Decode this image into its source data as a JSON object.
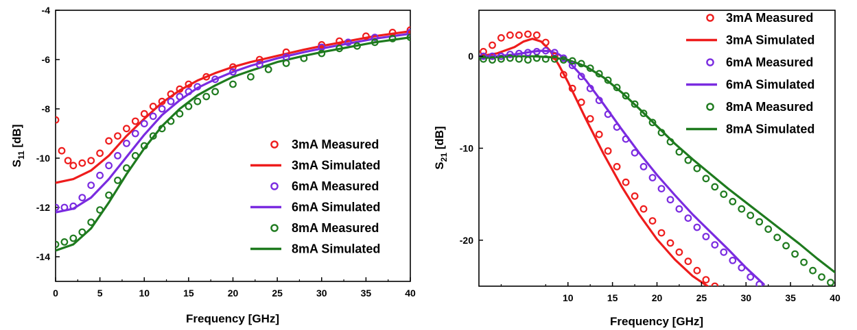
{
  "chart_data": [
    {
      "type": "line",
      "xlabel": "Frequency [GHz]",
      "ylabel_main": "S",
      "ylabel_sub": "11",
      "ylabel_unit": " [dB]",
      "xlim": [
        0,
        40
      ],
      "ylim": [
        -15,
        -4
      ],
      "xticks": [
        0,
        5,
        10,
        15,
        20,
        25,
        30,
        35,
        40
      ],
      "yticks": [
        -14,
        -12,
        -10,
        -8,
        -6,
        -4
      ],
      "grid": false,
      "legend_position": "center-right",
      "colors": {
        "3mA": "#ee1c1c",
        "6mA": "#7a2be0",
        "8mA": "#1e7a1e"
      },
      "series": [
        {
          "name": "3mA Measured",
          "style": "marker",
          "color": "#ee1c1c",
          "x": [
            0,
            0.7,
            1.4,
            2,
            3,
            4,
            5,
            6,
            7,
            8,
            9,
            10,
            11,
            12,
            13,
            14,
            15,
            17,
            20,
            23,
            26,
            30,
            32,
            35,
            38,
            40
          ],
          "y": [
            -8.45,
            -9.7,
            -10.1,
            -10.3,
            -10.2,
            -10.1,
            -9.8,
            -9.3,
            -9.1,
            -8.8,
            -8.5,
            -8.2,
            -7.9,
            -7.7,
            -7.4,
            -7.2,
            -7.0,
            -6.7,
            -6.3,
            -6.0,
            -5.7,
            -5.4,
            -5.25,
            -5.05,
            -4.9,
            -4.8
          ]
        },
        {
          "name": "3mA Simulated",
          "style": "line",
          "color": "#ee1c1c",
          "x": [
            0,
            2,
            4,
            6,
            8,
            10,
            12,
            14,
            16,
            18,
            20,
            22,
            25,
            28,
            30,
            33,
            36,
            40
          ],
          "y": [
            -11.0,
            -10.85,
            -10.5,
            -9.9,
            -9.1,
            -8.4,
            -7.75,
            -7.25,
            -6.85,
            -6.55,
            -6.3,
            -6.1,
            -5.85,
            -5.6,
            -5.45,
            -5.25,
            -5.05,
            -4.85
          ]
        },
        {
          "name": "6mA Measured",
          "style": "marker",
          "color": "#7a2be0",
          "x": [
            0,
            1,
            2,
            3,
            4,
            5,
            6,
            7,
            8,
            9,
            10,
            11,
            12,
            13,
            14,
            15,
            16,
            18,
            20,
            23,
            26,
            30,
            33,
            36,
            40
          ],
          "y": [
            -12.0,
            -12.0,
            -11.95,
            -11.6,
            -11.1,
            -10.7,
            -10.3,
            -9.9,
            -9.4,
            -9.0,
            -8.6,
            -8.3,
            -8.0,
            -7.7,
            -7.5,
            -7.3,
            -7.1,
            -6.8,
            -6.5,
            -6.2,
            -5.9,
            -5.5,
            -5.3,
            -5.1,
            -4.9
          ]
        },
        {
          "name": "6mA Simulated",
          "style": "line",
          "color": "#7a2be0",
          "x": [
            0,
            2,
            4,
            6,
            8,
            10,
            12,
            14,
            16,
            18,
            20,
            22,
            25,
            28,
            30,
            33,
            36,
            40
          ],
          "y": [
            -12.2,
            -12.05,
            -11.6,
            -10.85,
            -9.95,
            -9.05,
            -8.25,
            -7.65,
            -7.15,
            -6.8,
            -6.5,
            -6.25,
            -5.95,
            -5.7,
            -5.55,
            -5.35,
            -5.15,
            -4.95
          ]
        },
        {
          "name": "8mA Measured",
          "style": "marker",
          "color": "#1e7a1e",
          "x": [
            0,
            1,
            2,
            3,
            4,
            5,
            6,
            7,
            8,
            9,
            10,
            11,
            12,
            13,
            14,
            15,
            16,
            17,
            18,
            20,
            22,
            24,
            26,
            28,
            30,
            32,
            34,
            36,
            38,
            40
          ],
          "y": [
            -13.5,
            -13.4,
            -13.25,
            -13.0,
            -12.6,
            -12.1,
            -11.5,
            -10.9,
            -10.4,
            -9.9,
            -9.5,
            -9.1,
            -8.8,
            -8.5,
            -8.2,
            -7.9,
            -7.7,
            -7.5,
            -7.3,
            -7.0,
            -6.7,
            -6.4,
            -6.15,
            -5.95,
            -5.75,
            -5.55,
            -5.45,
            -5.3,
            -5.15,
            -5.1
          ]
        },
        {
          "name": "8mA Simulated",
          "style": "line",
          "color": "#1e7a1e",
          "x": [
            0,
            2,
            4,
            6,
            8,
            10,
            12,
            14,
            16,
            18,
            20,
            22,
            25,
            28,
            30,
            33,
            36,
            40
          ],
          "y": [
            -13.75,
            -13.5,
            -12.85,
            -11.8,
            -10.65,
            -9.6,
            -8.7,
            -8.0,
            -7.45,
            -7.05,
            -6.7,
            -6.45,
            -6.1,
            -5.85,
            -5.7,
            -5.5,
            -5.3,
            -5.1
          ]
        }
      ]
    },
    {
      "type": "line",
      "xlabel": "Frequency [GHz]",
      "ylabel_main": "S",
      "ylabel_sub": "21",
      "ylabel_unit": " [dB]",
      "xlim": [
        0,
        40
      ],
      "ylim": [
        -25,
        5
      ],
      "xticks": [
        10,
        15,
        20,
        25,
        30,
        35,
        40
      ],
      "yticks": [
        -20,
        -10,
        0
      ],
      "grid": false,
      "legend_position": "top-right",
      "colors": {
        "3mA": "#ee1c1c",
        "6mA": "#7a2be0",
        "8mA": "#1e7a1e"
      },
      "series": [
        {
          "name": "3mA Measured",
          "style": "marker",
          "color": "#ee1c1c",
          "x": [
            0.5,
            1.5,
            2.5,
            3.5,
            4.5,
            5.5,
            6.5,
            7.5,
            8.5,
            9.5,
            10.5,
            11.5,
            12.5,
            13.5,
            14.5,
            15.5,
            16.5,
            17.5,
            18.5,
            19.5,
            20.5,
            21.5,
            22.5,
            23.5,
            24.5,
            25.5,
            26.5
          ],
          "y": [
            0.5,
            1.2,
            2.0,
            2.3,
            2.3,
            2.4,
            2.3,
            1.5,
            0.0,
            -2.0,
            -3.5,
            -5.0,
            -6.8,
            -8.5,
            -10.3,
            -12.0,
            -13.7,
            -15.2,
            -16.6,
            -17.9,
            -19.2,
            -20.3,
            -21.3,
            -22.3,
            -23.3,
            -24.3,
            -25.0
          ]
        },
        {
          "name": "3mA Simulated",
          "style": "line",
          "color": "#ee1c1c",
          "x": [
            0,
            2,
            4,
            5,
            6,
            7,
            8,
            9,
            10,
            11,
            12,
            14,
            16,
            18,
            20,
            22,
            24,
            26,
            27
          ],
          "y": [
            0,
            0.3,
            1.0,
            1.6,
            1.9,
            1.6,
            0.6,
            -1.0,
            -2.8,
            -4.8,
            -6.8,
            -10.6,
            -14.1,
            -17.2,
            -19.9,
            -22.1,
            -23.9,
            -25.2,
            -25.6
          ]
        },
        {
          "name": "6mA Measured",
          "style": "marker",
          "color": "#7a2be0",
          "x": [
            0.5,
            1.5,
            2.5,
            3.5,
            4.5,
            5.5,
            6.5,
            7.5,
            8.5,
            9.5,
            10.5,
            11.5,
            12.5,
            13.5,
            14.5,
            15.5,
            16.5,
            17.5,
            18.5,
            19.5,
            20.5,
            21.5,
            22.5,
            23.5,
            24.5,
            25.5,
            26.5,
            27.5,
            28.5,
            29.5,
            30.5,
            31.5
          ],
          "y": [
            0,
            0,
            0,
            0.2,
            0.3,
            0.4,
            0.5,
            0.6,
            0.4,
            -0.2,
            -1.0,
            -2.2,
            -3.5,
            -4.8,
            -6.3,
            -7.7,
            -9.0,
            -10.5,
            -12.0,
            -13.2,
            -14.4,
            -15.6,
            -16.6,
            -17.6,
            -18.6,
            -19.6,
            -20.5,
            -21.3,
            -22.2,
            -23.0,
            -24.0,
            -24.8
          ]
        },
        {
          "name": "6mA Simulated",
          "style": "line",
          "color": "#7a2be0",
          "x": [
            0,
            2,
            4,
            6,
            7,
            8,
            9,
            10,
            12,
            14,
            16,
            18,
            20,
            22,
            24,
            26,
            28,
            30,
            32
          ],
          "y": [
            0,
            0,
            0.2,
            0.5,
            0.6,
            0.55,
            0.2,
            -0.5,
            -2.6,
            -5.2,
            -7.9,
            -10.5,
            -12.9,
            -15.1,
            -17.2,
            -19.1,
            -21.0,
            -23.0,
            -24.8
          ]
        },
        {
          "name": "8mA Measured",
          "style": "marker",
          "color": "#1e7a1e",
          "x": [
            0.5,
            1.5,
            2.5,
            3.5,
            4.5,
            5.5,
            6.5,
            7.5,
            8.5,
            9.5,
            10.5,
            11.5,
            12.5,
            13.5,
            14.5,
            15.5,
            16.5,
            17.5,
            18.5,
            19.5,
            20.5,
            21.5,
            22.5,
            23.5,
            24.5,
            25.5,
            26.5,
            27.5,
            28.5,
            29.5,
            30.5,
            31.5,
            32.5,
            33.5,
            34.5,
            35.5,
            36.5,
            37.5,
            38.5,
            39.5
          ],
          "y": [
            -0.3,
            -0.4,
            -0.3,
            -0.2,
            -0.3,
            -0.4,
            -0.2,
            -0.3,
            -0.3,
            -0.4,
            -0.5,
            -0.8,
            -1.3,
            -1.9,
            -2.6,
            -3.4,
            -4.3,
            -5.2,
            -6.2,
            -7.2,
            -8.3,
            -9.3,
            -10.4,
            -11.3,
            -12.2,
            -13.3,
            -14.2,
            -15.0,
            -15.8,
            -16.6,
            -17.3,
            -18.0,
            -18.8,
            -19.7,
            -20.6,
            -21.5,
            -22.4,
            -23.3,
            -24.0,
            -24.6
          ]
        },
        {
          "name": "8mA Simulated",
          "style": "line",
          "color": "#1e7a1e",
          "x": [
            0,
            2,
            4,
            6,
            8,
            10,
            12,
            14,
            16,
            18,
            20,
            22,
            24,
            26,
            28,
            30,
            32,
            34,
            36,
            38,
            40
          ],
          "y": [
            -0.2,
            -0.1,
            0,
            0,
            -0.1,
            -0.4,
            -1.1,
            -2.3,
            -3.9,
            -5.7,
            -7.6,
            -9.5,
            -11.2,
            -12.8,
            -14.4,
            -15.9,
            -17.4,
            -18.9,
            -20.4,
            -22.0,
            -23.5
          ]
        }
      ]
    }
  ]
}
